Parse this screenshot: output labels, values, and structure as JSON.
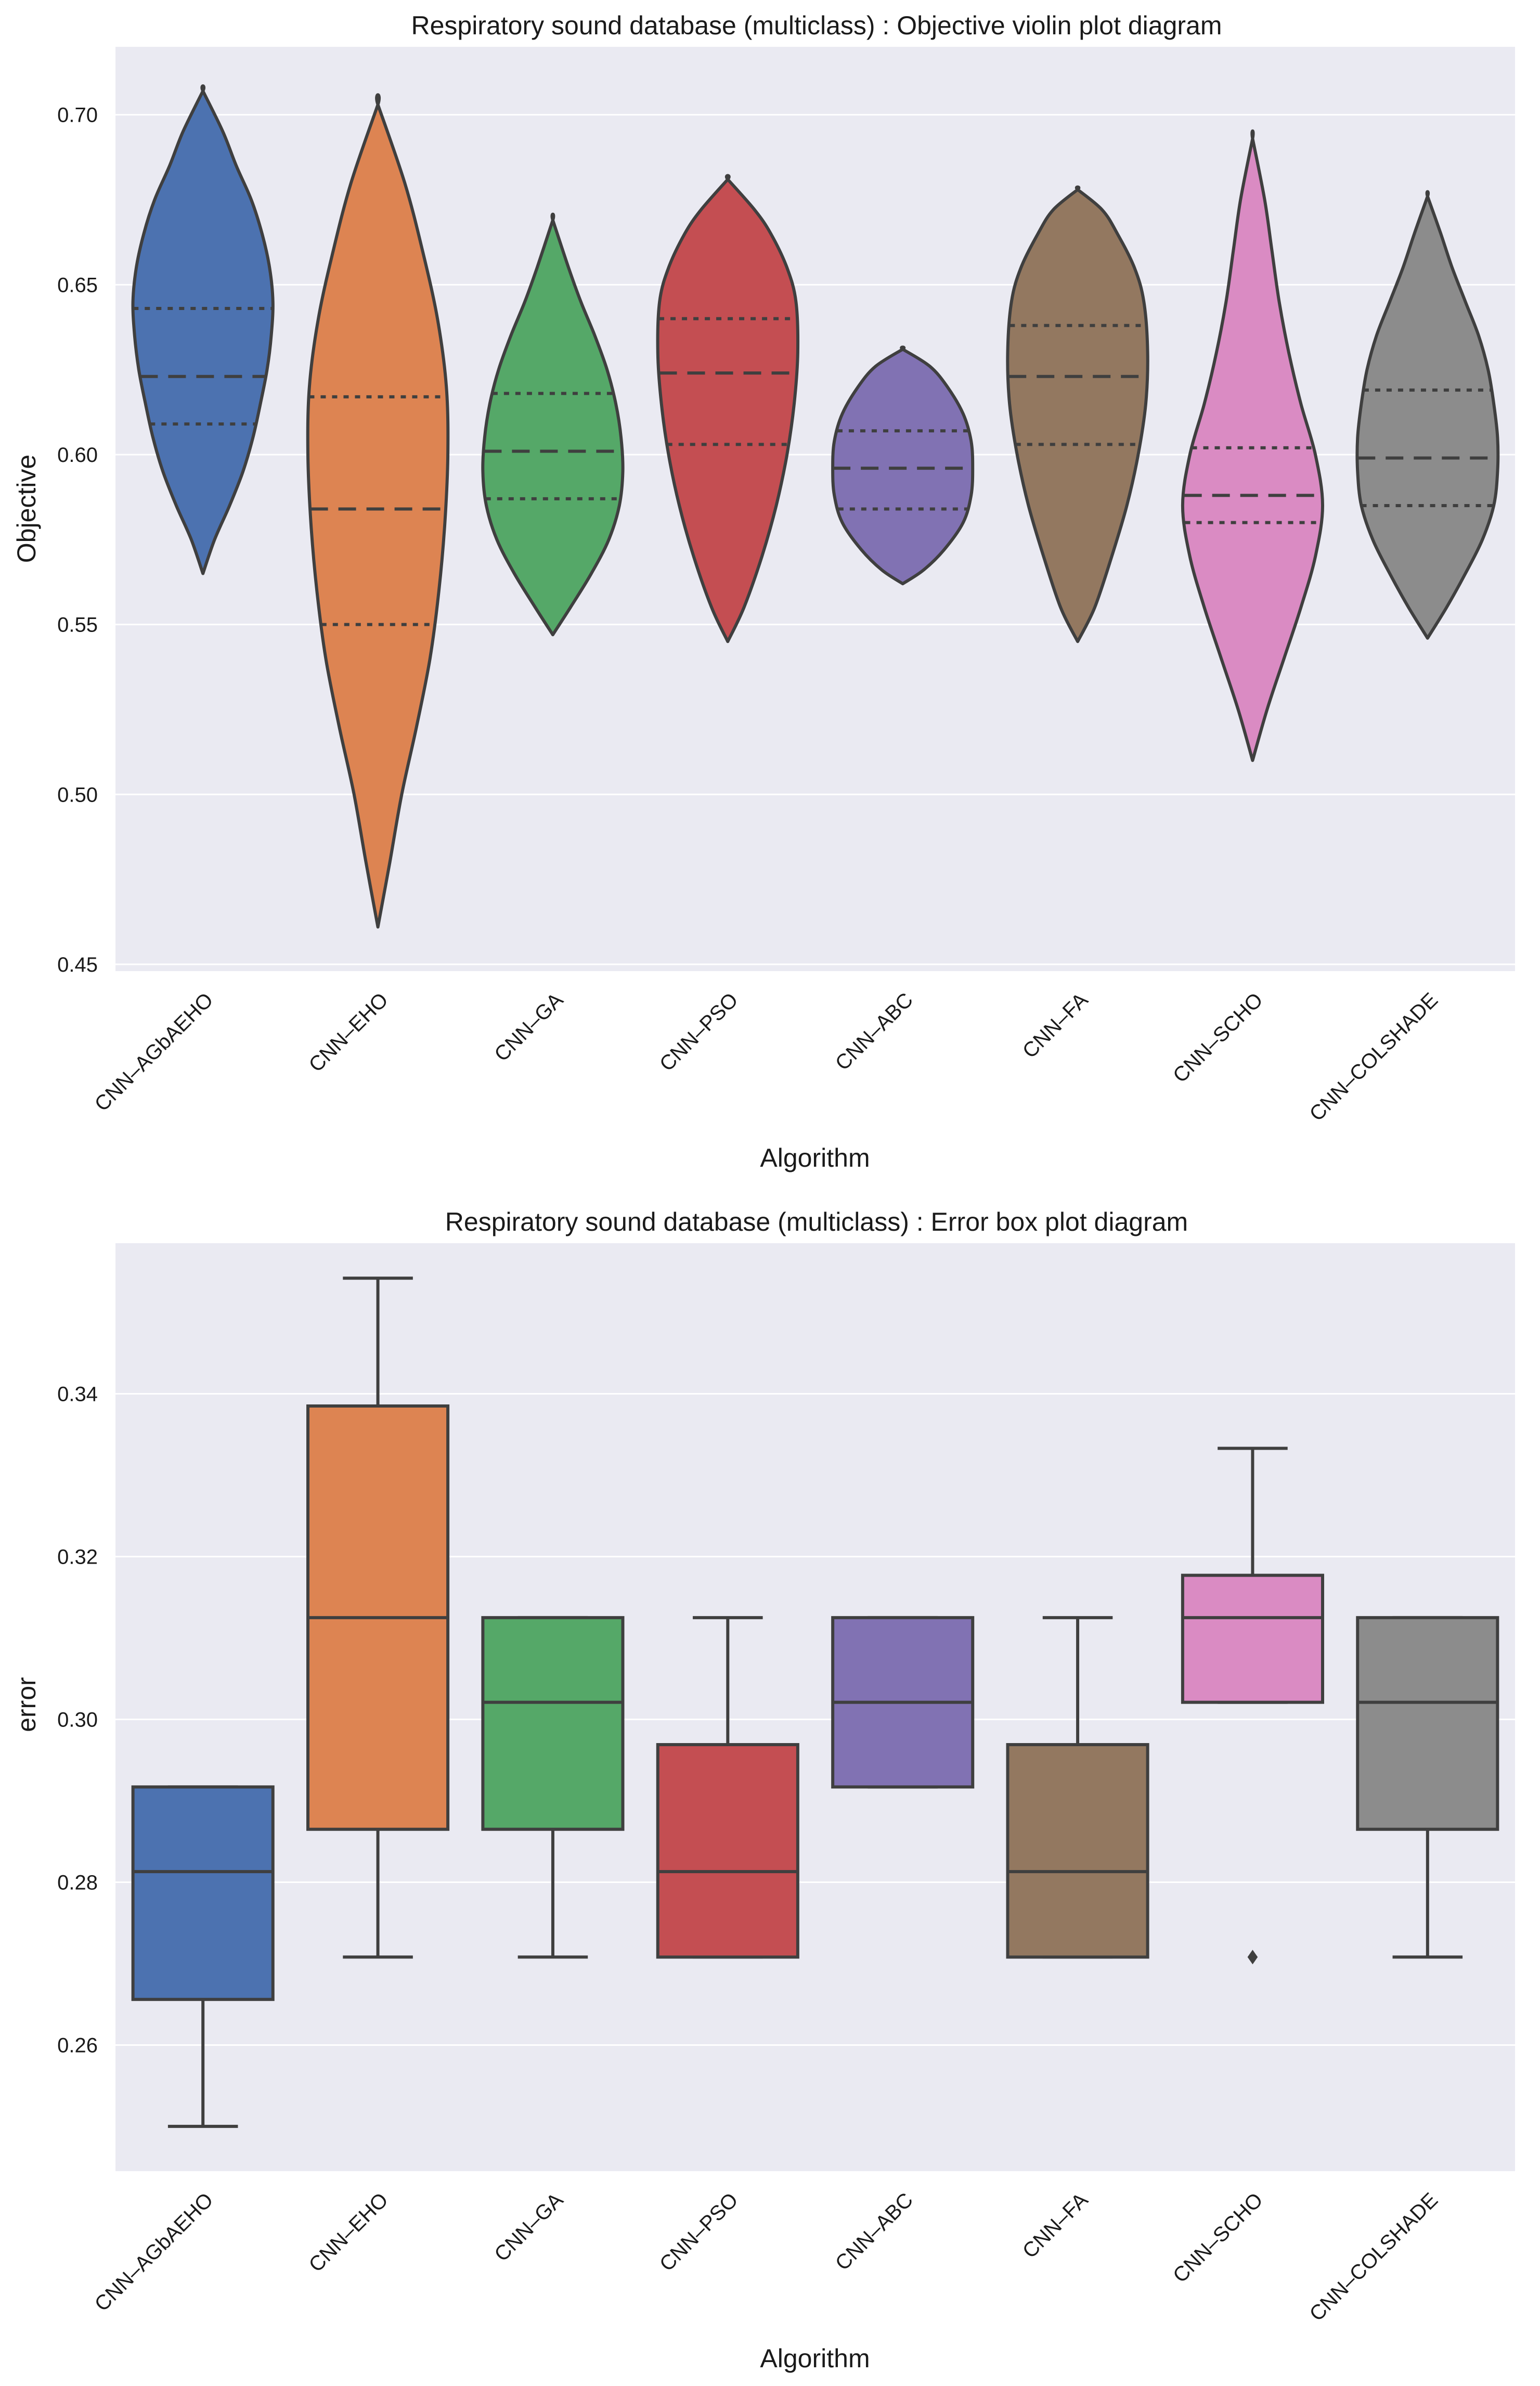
{
  "chart_data": [
    {
      "type": "violin",
      "title": "Respiratory sound database (multiclass) : Objective violin plot diagram",
      "xlabel": "Algorithm",
      "ylabel": "Objective",
      "ylim": [
        0.448,
        0.72
      ],
      "yticks": [
        "0.45",
        "0.50",
        "0.55",
        "0.60",
        "0.65",
        "0.70"
      ],
      "grid": true,
      "inner": "quartile",
      "categories": [
        "CNN–AGbAEHO",
        "CNN–EHO",
        "CNN–GA",
        "CNN–PSO",
        "CNN–ABC",
        "CNN–FA",
        "CNN–SCHO",
        "CNN–COLSHADE"
      ],
      "colors": [
        "#4c72b0",
        "#dd8452",
        "#55a868",
        "#c44e52",
        "#8172b3",
        "#937860",
        "#da8bc3",
        "#8c8c8c"
      ],
      "violins": [
        {
          "min": 0.565,
          "max": 0.707,
          "q1": 0.609,
          "median": 0.623,
          "q3": 0.643,
          "profile": [
            [
              0.565,
              0.0
            ],
            [
              0.575,
              0.07
            ],
            [
              0.585,
              0.16
            ],
            [
              0.595,
              0.24
            ],
            [
              0.605,
              0.3
            ],
            [
              0.615,
              0.345
            ],
            [
              0.625,
              0.385
            ],
            [
              0.635,
              0.41
            ],
            [
              0.645,
              0.42
            ],
            [
              0.655,
              0.4
            ],
            [
              0.665,
              0.355
            ],
            [
              0.675,
              0.29
            ],
            [
              0.685,
              0.2
            ],
            [
              0.695,
              0.12
            ],
            [
              0.707,
              0.0
            ]
          ]
        },
        {
          "min": 0.461,
          "max": 0.703,
          "q1": 0.55,
          "median": 0.584,
          "q3": 0.617,
          "profile": [
            [
              0.461,
              0.0
            ],
            [
              0.48,
              0.04
            ],
            [
              0.5,
              0.08
            ],
            [
              0.52,
              0.13
            ],
            [
              0.54,
              0.175
            ],
            [
              0.56,
              0.205
            ],
            [
              0.58,
              0.225
            ],
            [
              0.6,
              0.235
            ],
            [
              0.62,
              0.23
            ],
            [
              0.64,
              0.2
            ],
            [
              0.66,
              0.15
            ],
            [
              0.68,
              0.09
            ],
            [
              0.703,
              0.0
            ]
          ]
        },
        {
          "min": 0.547,
          "max": 0.669,
          "q1": 0.587,
          "median": 0.601,
          "q3": 0.618,
          "profile": [
            [
              0.547,
              0.0
            ],
            [
              0.555,
              0.1
            ],
            [
              0.565,
              0.22
            ],
            [
              0.575,
              0.32
            ],
            [
              0.585,
              0.38
            ],
            [
              0.595,
              0.4
            ],
            [
              0.605,
              0.39
            ],
            [
              0.615,
              0.36
            ],
            [
              0.625,
              0.31
            ],
            [
              0.635,
              0.24
            ],
            [
              0.645,
              0.16
            ],
            [
              0.655,
              0.09
            ],
            [
              0.669,
              0.0
            ]
          ]
        },
        {
          "min": 0.545,
          "max": 0.681,
          "q1": 0.603,
          "median": 0.624,
          "q3": 0.64,
          "profile": [
            [
              0.545,
              0.0
            ],
            [
              0.555,
              0.09
            ],
            [
              0.57,
              0.19
            ],
            [
              0.585,
              0.27
            ],
            [
              0.6,
              0.33
            ],
            [
              0.615,
              0.37
            ],
            [
              0.63,
              0.39
            ],
            [
              0.645,
              0.38
            ],
            [
              0.655,
              0.33
            ],
            [
              0.665,
              0.24
            ],
            [
              0.672,
              0.15
            ],
            [
              0.681,
              0.0
            ]
          ]
        },
        {
          "min": 0.562,
          "max": 0.631,
          "q1": 0.584,
          "median": 0.596,
          "q3": 0.607,
          "profile": [
            [
              0.562,
              0.0
            ],
            [
              0.566,
              0.13
            ],
            [
              0.572,
              0.26
            ],
            [
              0.58,
              0.38
            ],
            [
              0.588,
              0.43
            ],
            [
              0.596,
              0.44
            ],
            [
              0.604,
              0.43
            ],
            [
              0.612,
              0.38
            ],
            [
              0.62,
              0.28
            ],
            [
              0.626,
              0.17
            ],
            [
              0.631,
              0.0
            ]
          ]
        },
        {
          "min": 0.545,
          "max": 0.678,
          "q1": 0.603,
          "median": 0.623,
          "q3": 0.638,
          "profile": [
            [
              0.545,
              0.0
            ],
            [
              0.555,
              0.09
            ],
            [
              0.57,
              0.18
            ],
            [
              0.585,
              0.26
            ],
            [
              0.6,
              0.32
            ],
            [
              0.615,
              0.36
            ],
            [
              0.63,
              0.37
            ],
            [
              0.645,
              0.35
            ],
            [
              0.655,
              0.3
            ],
            [
              0.665,
              0.21
            ],
            [
              0.672,
              0.13
            ],
            [
              0.678,
              0.0
            ]
          ]
        },
        {
          "min": 0.51,
          "max": 0.693,
          "q1": 0.58,
          "median": 0.588,
          "q3": 0.602,
          "profile": [
            [
              0.51,
              0.0
            ],
            [
              0.525,
              0.06
            ],
            [
              0.54,
              0.13
            ],
            [
              0.555,
              0.2
            ],
            [
              0.57,
              0.26
            ],
            [
              0.585,
              0.29
            ],
            [
              0.6,
              0.26
            ],
            [
              0.615,
              0.2
            ],
            [
              0.63,
              0.15
            ],
            [
              0.645,
              0.11
            ],
            [
              0.66,
              0.08
            ],
            [
              0.675,
              0.05
            ],
            [
              0.693,
              0.0
            ]
          ]
        },
        {
          "min": 0.546,
          "max": 0.676,
          "q1": 0.585,
          "median": 0.599,
          "q3": 0.619,
          "profile": [
            [
              0.546,
              0.0
            ],
            [
              0.555,
              0.1
            ],
            [
              0.565,
              0.2
            ],
            [
              0.575,
              0.29
            ],
            [
              0.585,
              0.35
            ],
            [
              0.595,
              0.37
            ],
            [
              0.605,
              0.37
            ],
            [
              0.615,
              0.35
            ],
            [
              0.625,
              0.32
            ],
            [
              0.635,
              0.27
            ],
            [
              0.645,
              0.2
            ],
            [
              0.655,
              0.13
            ],
            [
              0.665,
              0.07
            ],
            [
              0.676,
              0.0
            ]
          ]
        }
      ]
    },
    {
      "type": "box",
      "title": "Respiratory sound database (multiclass) : Error box plot diagram",
      "xlabel": "Algorithm",
      "ylabel": "error",
      "ylim": [
        0.2445,
        0.3585
      ],
      "yticks": [
        "0.26",
        "0.28",
        "0.30",
        "0.32",
        "0.34"
      ],
      "grid": true,
      "categories": [
        "CNN–AGbAEHO",
        "CNN–EHO",
        "CNN–GA",
        "CNN–PSO",
        "CNN–ABC",
        "CNN–FA",
        "CNN–SCHO",
        "CNN–COLSHADE"
      ],
      "colors": [
        "#4c72b0",
        "#dd8452",
        "#55a868",
        "#c44e52",
        "#8172b3",
        "#937860",
        "#da8bc3",
        "#8c8c8c"
      ],
      "boxes": [
        {
          "whislo": 0.25,
          "q1": 0.2656,
          "median": 0.2813,
          "q3": 0.2917,
          "whishi": 0.2917,
          "fliers": []
        },
        {
          "whislo": 0.2708,
          "q1": 0.2865,
          "median": 0.3125,
          "q3": 0.3385,
          "whishi": 0.3542,
          "fliers": []
        },
        {
          "whislo": 0.2708,
          "q1": 0.2865,
          "median": 0.3021,
          "q3": 0.3125,
          "whishi": 0.3125,
          "fliers": []
        },
        {
          "whislo": 0.2708,
          "q1": 0.2708,
          "median": 0.2813,
          "q3": 0.2969,
          "whishi": 0.3125,
          "fliers": []
        },
        {
          "whislo": 0.2917,
          "q1": 0.2917,
          "median": 0.3021,
          "q3": 0.3125,
          "whishi": 0.3125,
          "fliers": []
        },
        {
          "whislo": 0.2708,
          "q1": 0.2708,
          "median": 0.2813,
          "q3": 0.2969,
          "whishi": 0.3125,
          "fliers": []
        },
        {
          "whislo": 0.3021,
          "q1": 0.3021,
          "median": 0.3125,
          "q3": 0.3177,
          "whishi": 0.3333,
          "fliers": [
            0.2708
          ]
        },
        {
          "whislo": 0.2708,
          "q1": 0.2865,
          "median": 0.3021,
          "q3": 0.3125,
          "whishi": 0.3125,
          "fliers": []
        }
      ]
    }
  ]
}
